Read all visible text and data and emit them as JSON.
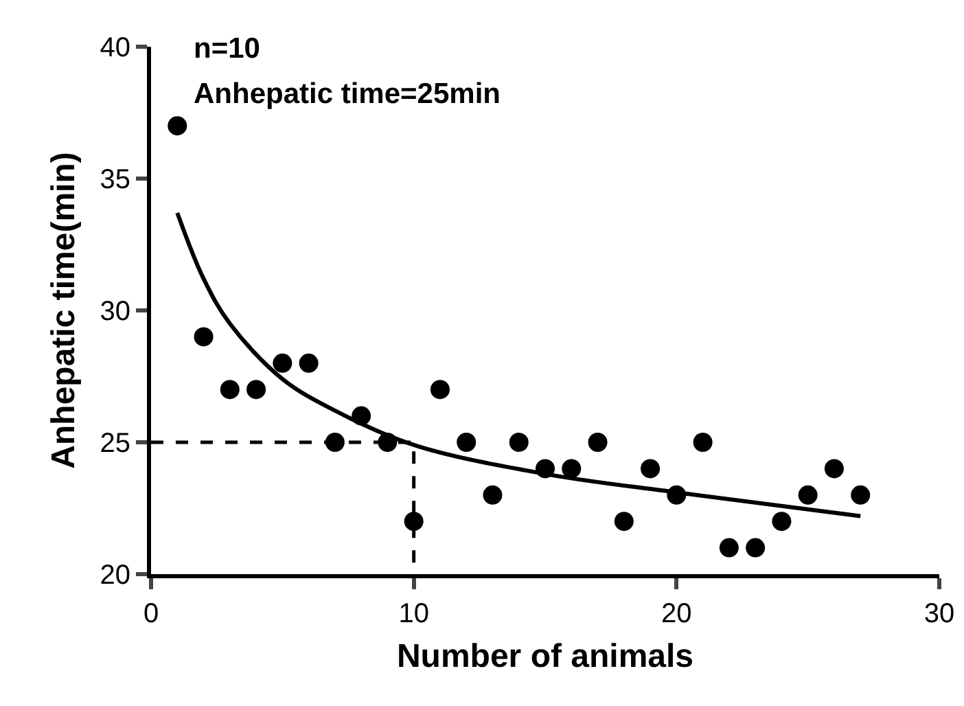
{
  "chart_data": {
    "type": "scatter",
    "xlabel": "Number of animals",
    "ylabel": "Anhepatic time(min)",
    "annotations": [
      "n=10",
      "Anhepatic time=25min"
    ],
    "xlim": [
      0,
      30
    ],
    "xticks": [
      0,
      10,
      20,
      30
    ],
    "ylim": [
      20,
      40
    ],
    "yticks": [
      20,
      25,
      30,
      35,
      40
    ],
    "grid": false,
    "series": [
      {
        "marker": "circle",
        "color": "#000000",
        "x": [
          1,
          2,
          3,
          4,
          5,
          6,
          7,
          8,
          9,
          10,
          11,
          12,
          13,
          14,
          15,
          16,
          17,
          18,
          19,
          20,
          21,
          22,
          23,
          24,
          25,
          26,
          27
        ],
        "values": [
          37,
          29,
          27,
          27,
          28,
          28,
          25,
          26,
          25,
          22,
          27,
          25,
          23,
          25,
          24,
          24,
          25,
          22,
          24,
          23,
          25,
          21,
          21,
          22,
          23,
          24,
          23
        ]
      },
      {
        "type": "line",
        "line_style": "solid",
        "color": "#000000",
        "x": [
          1,
          2,
          3,
          5,
          7,
          10,
          15,
          20,
          27
        ],
        "values": [
          33.7,
          31.2,
          29.5,
          27.4,
          26.2,
          24.9,
          23.8,
          23.1,
          22.2
        ]
      },
      {
        "type": "line",
        "line_style": "dashed",
        "color": "#000000",
        "x": [
          0,
          10,
          10
        ],
        "values": [
          25,
          25,
          20
        ]
      }
    ]
  }
}
